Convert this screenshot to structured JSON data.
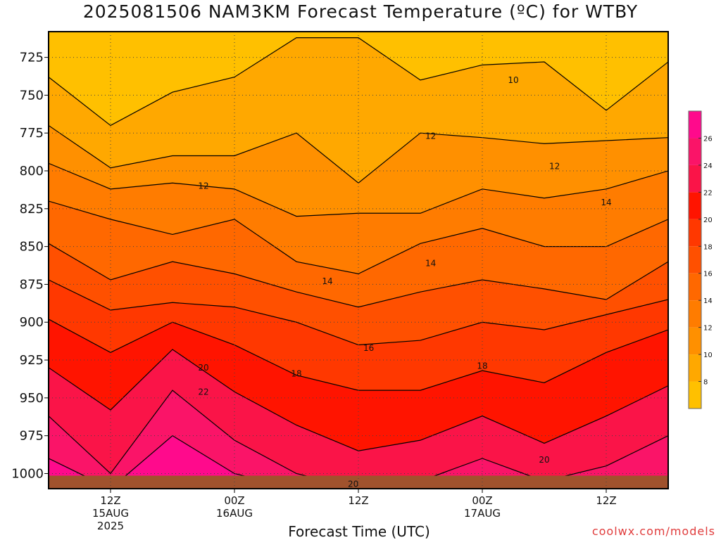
{
  "title": "2025081506 NAM3KM Forecast Temperature (ºC) for WTBY",
  "xlabel": "Forecast Time (UTC)",
  "credit": "coolwx.com/models",
  "chart_data": {
    "type": "heatmap",
    "title": "2025081506 NAM3KM Forecast Temperature (ºC) for WTBY",
    "xlabel": "Forecast Time (UTC)",
    "ylabel": "",
    "model": "NAM3KM",
    "station": "WTBY",
    "init": "2025081506",
    "x_range_hours": [
      0,
      60
    ],
    "y_range_hpa": [
      708,
      1010
    ],
    "y_ticks": [
      725,
      750,
      775,
      800,
      825,
      850,
      875,
      900,
      925,
      950,
      975,
      1000
    ],
    "x_ticks": [
      {
        "hour": 6,
        "lines": [
          "12Z",
          "15AUG",
          "2025"
        ]
      },
      {
        "hour": 18,
        "lines": [
          "00Z",
          "16AUG"
        ]
      },
      {
        "hour": 30,
        "lines": [
          "12Z"
        ]
      },
      {
        "hour": 42,
        "lines": [
          "00Z",
          "17AUG"
        ]
      },
      {
        "hour": 54,
        "lines": [
          "12Z"
        ]
      }
    ],
    "contour_interval": 2,
    "contour_labels": [
      {
        "text": "10",
        "hour": 45,
        "p": 740
      },
      {
        "text": "12",
        "hour": 15,
        "p": 810
      },
      {
        "text": "12",
        "hour": 37,
        "p": 777
      },
      {
        "text": "12",
        "hour": 49,
        "p": 797
      },
      {
        "text": "14",
        "hour": 27,
        "p": 873
      },
      {
        "text": "14",
        "hour": 37,
        "p": 861
      },
      {
        "text": "14",
        "hour": 54,
        "p": 821
      },
      {
        "text": "16",
        "hour": 31,
        "p": 917
      },
      {
        "text": "18",
        "hour": 24,
        "p": 934
      },
      {
        "text": "18",
        "hour": 42,
        "p": 929
      },
      {
        "text": "20",
        "hour": 15,
        "p": 930
      },
      {
        "text": "20",
        "hour": 48,
        "p": 991
      },
      {
        "text": "20",
        "hour": 29.5,
        "p": 1007
      },
      {
        "text": "22",
        "hour": 15,
        "p": 946
      }
    ],
    "profiles": [
      {
        "hour": 0,
        "p": [
          708,
          738,
          770,
          795,
          820,
          848,
          872,
          898,
          930,
          962,
          990
        ]
      },
      {
        "hour": 6,
        "p": [
          708,
          770,
          798,
          812,
          832,
          872,
          892,
          920,
          958,
          1000,
          1010
        ]
      },
      {
        "hour": 12,
        "p": [
          708,
          748,
          790,
          808,
          842,
          860,
          887,
          900,
          918,
          945,
          975
        ]
      },
      {
        "hour": 18,
        "p": [
          708,
          738,
          790,
          812,
          832,
          868,
          890,
          915,
          946,
          978,
          1000
        ]
      },
      {
        "hour": 24,
        "p": [
          708,
          712,
          775,
          830,
          860,
          880,
          900,
          935,
          968,
          1000,
          1010
        ]
      },
      {
        "hour": 30,
        "p": [
          708,
          712,
          808,
          828,
          868,
          890,
          915,
          945,
          985,
          1010,
          1010
        ]
      },
      {
        "hour": 36,
        "p": [
          708,
          740,
          775,
          828,
          848,
          880,
          912,
          945,
          978,
          1005,
          1010
        ]
      },
      {
        "hour": 42,
        "p": [
          708,
          730,
          778,
          812,
          838,
          872,
          900,
          932,
          962,
          990,
          1008
        ]
      },
      {
        "hour": 48,
        "p": [
          708,
          728,
          782,
          818,
          850,
          878,
          905,
          940,
          980,
          1005,
          1010
        ]
      },
      {
        "hour": 54,
        "p": [
          708,
          760,
          780,
          812,
          850,
          885,
          895,
          920,
          962,
          995,
          1008
        ]
      },
      {
        "hour": 60,
        "p": [
          708,
          728,
          778,
          800,
          832,
          860,
          885,
          905,
          942,
          975,
          1003
        ]
      }
    ],
    "colorbar": {
      "levels": [
        6,
        8,
        10,
        12,
        14,
        16,
        18,
        20,
        22,
        24,
        26,
        28
      ],
      "labels": [
        8,
        10,
        12,
        14,
        16,
        18,
        20,
        22,
        24,
        26
      ],
      "colors": [
        "#ffc000",
        "#ffa800",
        "#ff9000",
        "#ff7c00",
        "#ff6800",
        "#ff5000",
        "#ff3800",
        "#ff1400",
        "#fa1448",
        "#fa1468",
        "#ff0a8c"
      ]
    },
    "ground_color": "#a0522d"
  }
}
